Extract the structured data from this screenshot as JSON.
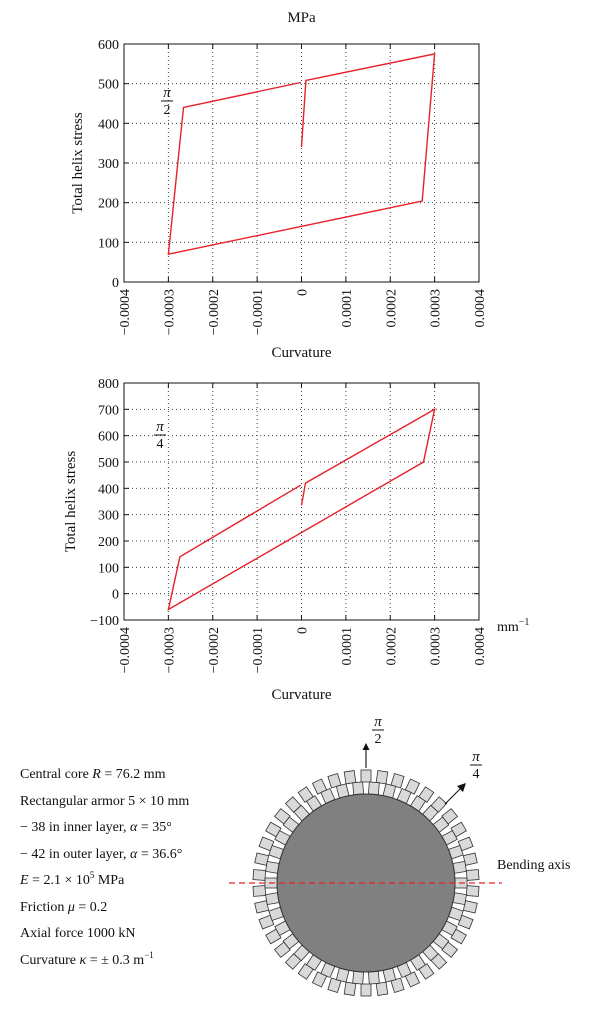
{
  "chart_data": [
    {
      "type": "line",
      "title": "MPa",
      "xlabel": "Curvature",
      "ylabel": "Total helix stress",
      "unit_label": "",
      "angle_label": {
        "num": "π",
        "den": "2"
      },
      "xlim": [
        -0.0004,
        0.0004
      ],
      "ylim": [
        0,
        600
      ],
      "x_ticks": [
        -0.0004,
        -0.0003,
        -0.0002,
        -0.0001,
        0,
        0.0001,
        0.0002,
        0.0003,
        0.0004
      ],
      "x_tick_labels": [
        "−0.0004",
        "−0.0003",
        "−0.0002",
        "−0.0001",
        "0",
        "0.0001",
        "0.0002",
        "0.0003",
        "0.0004"
      ],
      "y_ticks": [
        0,
        100,
        200,
        300,
        400,
        500,
        600
      ],
      "y_tick_labels": [
        "0",
        "100",
        "200",
        "300",
        "400",
        "500",
        "600"
      ],
      "grid": true,
      "series": [
        {
          "color": "#e8202a",
          "x": [
            0,
            1e-05,
            0.0003,
            0.000272,
            -0.0003,
            -0.000266,
            -2e-06
          ],
          "y": [
            340,
            508,
            575,
            204,
            70,
            440,
            503
          ]
        }
      ]
    },
    {
      "type": "line",
      "title": "",
      "xlabel": "Curvature",
      "ylabel": "Total helix stress",
      "unit_label": "mm",
      "unit_exp": "−1",
      "angle_label": {
        "num": "π",
        "den": "4"
      },
      "xlim": [
        -0.0004,
        0.0004
      ],
      "ylim": [
        -100,
        800
      ],
      "x_ticks": [
        -0.0004,
        -0.0003,
        -0.0002,
        -0.0001,
        0,
        0.0001,
        0.0002,
        0.0003,
        0.0004
      ],
      "x_tick_labels": [
        "−0.0004",
        "−0.0003",
        "−0.0002",
        "−0.0001",
        "0",
        "0.0001",
        "0.0002",
        "0.0003",
        "0.0004"
      ],
      "y_ticks": [
        -100,
        0,
        100,
        200,
        300,
        400,
        500,
        600,
        700,
        800
      ],
      "y_tick_labels": [
        "−100",
        "0",
        "100",
        "200",
        "300",
        "400",
        "500",
        "600",
        "700",
        "800"
      ],
      "grid": true,
      "series": [
        {
          "color": "#e8202a",
          "x": [
            0,
            9e-06,
            0.0003,
            0.000275,
            -0.0003,
            -0.000274,
            -2e-06
          ],
          "y": [
            335,
            420,
            700,
            500,
            -60,
            140,
            412
          ]
        }
      ]
    }
  ],
  "params": {
    "core": {
      "label": "Central core ",
      "var": "R",
      "value": " = 76.2 mm"
    },
    "armor": "Rectangular armor 5 × 10 mm",
    "inner": {
      "prefix": "− 38 in inner layer, ",
      "var": "α",
      "value": " = 35°"
    },
    "outer": {
      "prefix": "− 42 in outer layer, ",
      "var": "α",
      "value": " = 36.6°"
    },
    "modulus": {
      "var": "E",
      "mid": " = 2.1 × 10",
      "exp": "5",
      "unit": " MPa"
    },
    "friction": {
      "label": "Friction ",
      "var": "μ",
      "value": " = 0.2"
    },
    "axial": "Axial force 1000 kN",
    "curvature": {
      "label": "Curvature ",
      "var": "κ",
      "value": " = ± 0.3 m",
      "exp": "−1"
    }
  },
  "diagram": {
    "bending_axis_label": "Bending axis",
    "pi2": {
      "num": "π",
      "den": "2"
    },
    "pi4": {
      "num": "π",
      "den": "4"
    },
    "inner_count": 38,
    "outer_count": 42,
    "core_color": "#808080",
    "armor_color": "#d9d9d9",
    "axis_color": "#e8202a"
  }
}
